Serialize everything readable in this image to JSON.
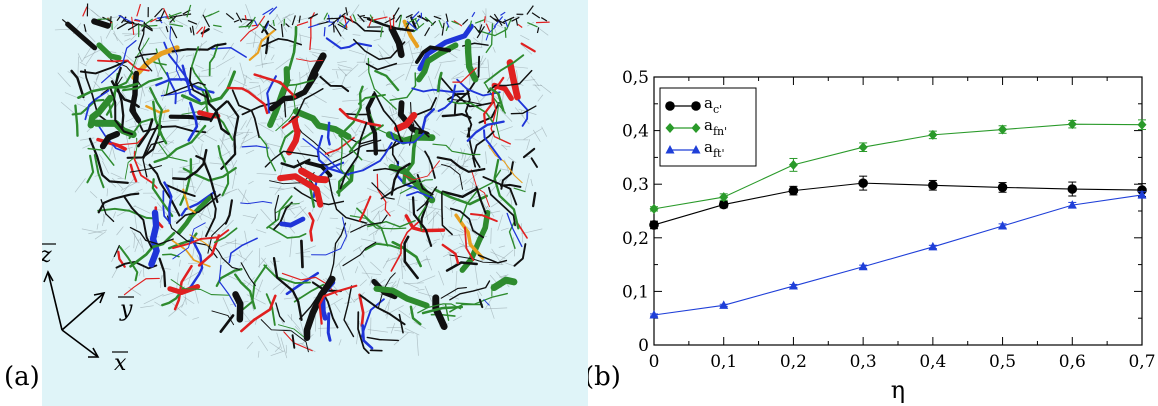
{
  "panels": {
    "a_label": "(a)",
    "b_label": "(b)"
  },
  "figure_a": {
    "axis_z": "z",
    "axis_y": "y",
    "axis_x": "x",
    "background_color": "#dff4f8",
    "strand_colors": [
      "#111111",
      "#2e8b2e",
      "#e02020",
      "#1f35d8",
      "#e8a020"
    ]
  },
  "chart_data": {
    "type": "line",
    "xlabel": "η",
    "ylabel": "",
    "title": "",
    "xlim": [
      0,
      0.7
    ],
    "ylim": [
      0,
      0.5
    ],
    "xticks": [
      "0",
      "0,1",
      "0,2",
      "0,3",
      "0,4",
      "0,5",
      "0,6",
      "0,7"
    ],
    "yticks": [
      "0",
      "0,1",
      "0,2",
      "0,3",
      "0,4",
      "0,5"
    ],
    "legend_position": "top-left",
    "x": [
      0,
      0.1,
      0.2,
      0.3,
      0.4,
      0.5,
      0.6,
      0.7
    ],
    "series": [
      {
        "name": "a",
        "sub": "c",
        "suffix": "'",
        "color": "#000000",
        "marker": "circle",
        "values": [
          0.224,
          0.262,
          0.288,
          0.302,
          0.298,
          0.294,
          0.291,
          0.289
        ],
        "errors": [
          0.007,
          0.006,
          0.008,
          0.013,
          0.009,
          0.009,
          0.013,
          0.012
        ]
      },
      {
        "name": "a",
        "sub": "fn",
        "suffix": "'",
        "color": "#2a9a2a",
        "marker": "diamond",
        "values": [
          0.254,
          0.276,
          0.336,
          0.369,
          0.392,
          0.402,
          0.412,
          0.411
        ],
        "errors": [
          0.004,
          0.006,
          0.012,
          0.008,
          0.007,
          0.007,
          0.007,
          0.009
        ]
      },
      {
        "name": "a",
        "sub": "ft",
        "suffix": "'",
        "color": "#1f3fd8",
        "marker": "triangle",
        "values": [
          0.056,
          0.074,
          0.11,
          0.146,
          0.183,
          0.222,
          0.261,
          0.28
        ],
        "errors": [
          0.002,
          0.002,
          0.003,
          0.003,
          0.003,
          0.004,
          0.005,
          0.006
        ]
      }
    ]
  }
}
